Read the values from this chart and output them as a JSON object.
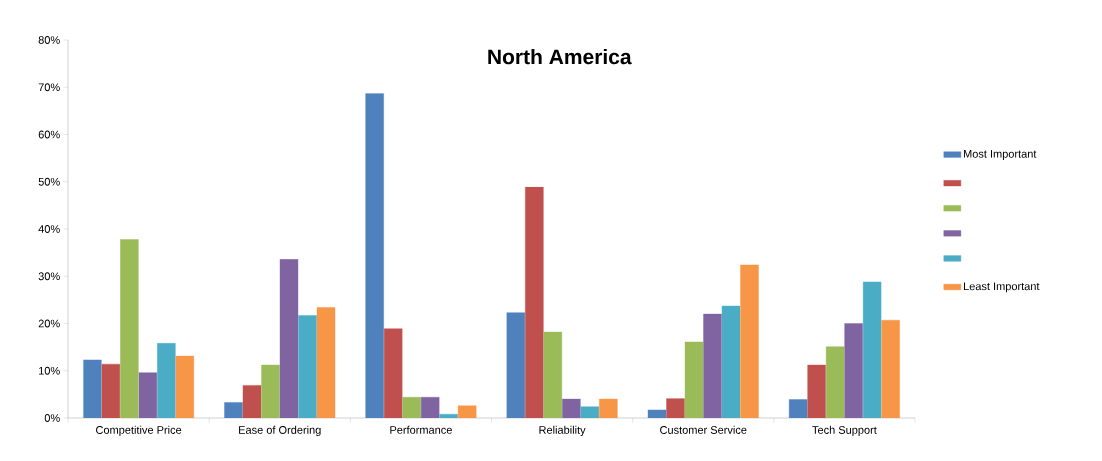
{
  "chart_data": {
    "type": "bar",
    "title": "North America",
    "categories": [
      "Competitive Price",
      "Ease of Ordering",
      "Performance",
      "Reliability",
      "Customer Service",
      "Tech Support"
    ],
    "series": [
      {
        "name": "Most Important",
        "color": "#4f81bd",
        "values": [
          12.3,
          3.3,
          68.7,
          22.3,
          1.7,
          3.9
        ]
      },
      {
        "color": "#c0504d",
        "values": [
          11.4,
          6.9,
          18.9,
          48.9,
          4.1,
          11.2
        ]
      },
      {
        "color": "#9bbb59",
        "values": [
          37.8,
          11.2,
          4.4,
          18.2,
          16.1,
          15.1
        ]
      },
      {
        "color": "#8064a2",
        "values": [
          9.6,
          33.6,
          4.4,
          4.0,
          22.0,
          20.0
        ]
      },
      {
        "color": "#4bacc6",
        "values": [
          15.8,
          21.7,
          0.8,
          2.4,
          23.7,
          28.8
        ]
      },
      {
        "name": "Least Important",
        "color": "#f79646",
        "values": [
          13.1,
          23.4,
          2.6,
          4.0,
          32.4,
          20.7
        ]
      }
    ],
    "ylim": [
      0,
      80
    ],
    "yticks": [
      {
        "value": 0,
        "label": "0%"
      },
      {
        "value": 10,
        "label": "10%"
      },
      {
        "value": 20,
        "label": "20%"
      },
      {
        "value": 30,
        "label": "30%"
      },
      {
        "value": 40,
        "label": "40%"
      },
      {
        "value": 50,
        "label": "50%"
      },
      {
        "value": 60,
        "label": "60%"
      },
      {
        "value": 70,
        "label": "70%"
      },
      {
        "value": 80,
        "label": "80%"
      }
    ],
    "grid": false,
    "legend": "right"
  }
}
